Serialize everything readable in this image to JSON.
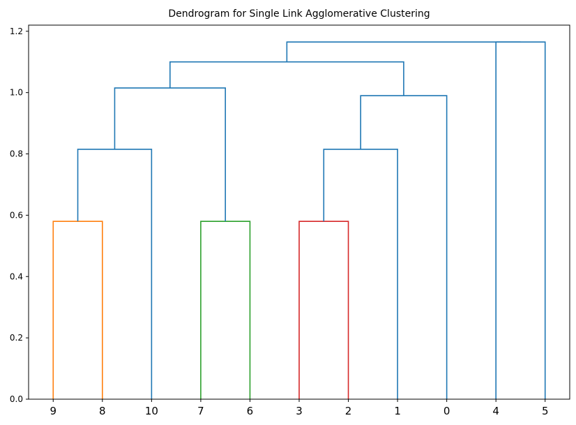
{
  "chart_data": {
    "type": "dendrogram",
    "title": "Dendrogram for Single Link Agglomerative Clustering",
    "xlabel": "",
    "ylabel": "",
    "ylim": [
      0,
      1.22
    ],
    "yticks": [
      "0.0",
      "0.2",
      "0.4",
      "0.6",
      "0.8",
      "1.0",
      "1.2"
    ],
    "leaves": [
      "9",
      "8",
      "10",
      "7",
      "6",
      "3",
      "2",
      "1",
      "0",
      "4",
      "5"
    ],
    "colors": {
      "orange": "#ff7f0e",
      "green": "#2ca02c",
      "red": "#d62728",
      "blue": "#1f77b4"
    },
    "merges": [
      {
        "left": "9",
        "right": "8",
        "height": 0.58,
        "color": "orange"
      },
      {
        "left": "7",
        "right": "6",
        "height": 0.58,
        "color": "green"
      },
      {
        "left": "3",
        "right": "2",
        "height": 0.58,
        "color": "red"
      },
      {
        "left": "{9,8}",
        "right": "10",
        "height": 0.815,
        "color": "blue"
      },
      {
        "left": "{3,2}",
        "right": "1",
        "height": 0.815,
        "color": "blue"
      },
      {
        "left": "{3,2,1}",
        "right": "0",
        "height": 0.99,
        "color": "blue"
      },
      {
        "left": "{9,8,10}",
        "right": "{7,6}",
        "height": 1.015,
        "color": "blue"
      },
      {
        "left": "{9,8,10,7,6}",
        "right": "{3,2,1,0}",
        "height": 1.1,
        "color": "blue"
      },
      {
        "left": "4",
        "right": "5",
        "height": 1.165,
        "color": "blue"
      },
      {
        "left": "{9,8,10,7,6,3,2,1,0}",
        "right": "{4,5}",
        "height": 1.165,
        "color": "blue"
      }
    ]
  }
}
